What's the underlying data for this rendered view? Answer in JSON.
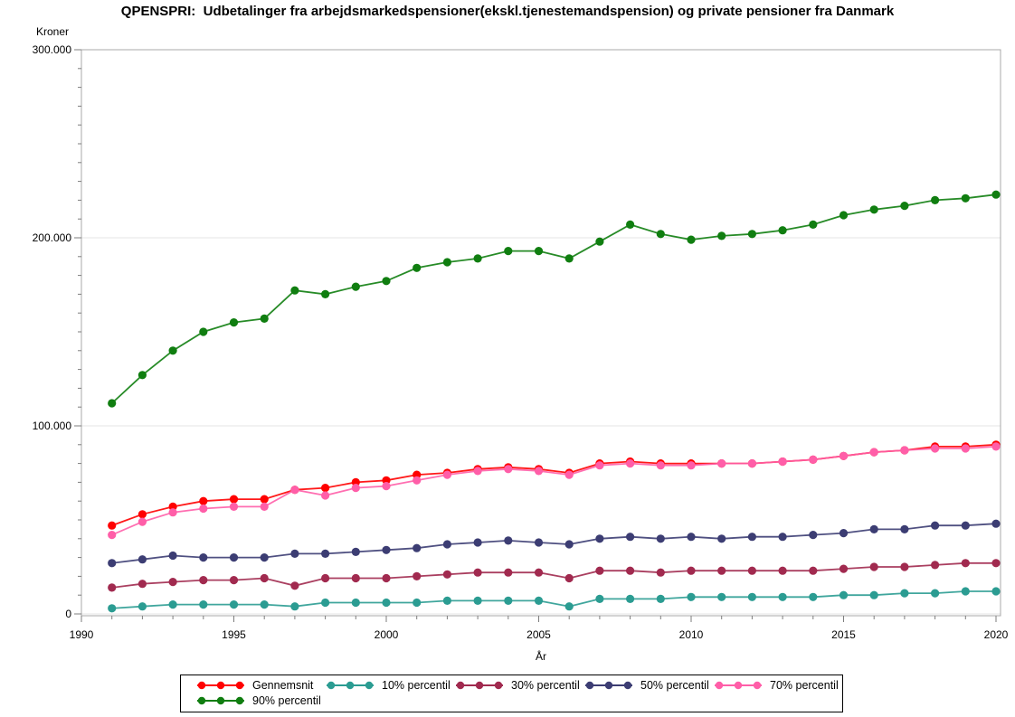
{
  "chart_data": {
    "type": "line",
    "title": "QPENSPRI:  Udbetalinger fra arbejdsmarkedspensioner(ekskl.tjenestemandspension) og private pensioner fra Danmark",
    "xlabel": "År",
    "ylabel": "Kroner",
    "xlim": [
      1990,
      2020
    ],
    "ylim": [
      0,
      300000
    ],
    "grid": "horizontal-major",
    "legend_position": "bottom",
    "x_ticks": [
      1990,
      1995,
      2000,
      2005,
      2010,
      2015,
      2020
    ],
    "x_minor_step": 1,
    "y_ticks": [
      {
        "value": 0,
        "label": "0"
      },
      {
        "value": 100000,
        "label": "100.000"
      },
      {
        "value": 200000,
        "label": "200.000"
      },
      {
        "value": 300000,
        "label": "300.000"
      }
    ],
    "y_minor_step": 10000,
    "x": [
      1991,
      1992,
      1993,
      1994,
      1995,
      1996,
      1997,
      1998,
      1999,
      2000,
      2001,
      2002,
      2003,
      2004,
      2005,
      2006,
      2007,
      2008,
      2009,
      2010,
      2011,
      2012,
      2013,
      2014,
      2015,
      2016,
      2017,
      2018,
      2019,
      2020
    ],
    "series": [
      {
        "name": "Gennemsnit",
        "color": "#FF0000",
        "values": [
          47000,
          53000,
          57000,
          60000,
          61000,
          61000,
          66000,
          67000,
          70000,
          71000,
          74000,
          75000,
          77000,
          78000,
          77000,
          75000,
          80000,
          81000,
          80000,
          80000,
          80000,
          80000,
          81000,
          82000,
          84000,
          86000,
          87000,
          89000,
          89000,
          90000
        ]
      },
      {
        "name": "10% percentil",
        "color": "#2B9C92",
        "values": [
          3000,
          4000,
          5000,
          5000,
          5000,
          5000,
          4000,
          6000,
          6000,
          6000,
          6000,
          7000,
          7000,
          7000,
          7000,
          4000,
          8000,
          8000,
          8000,
          9000,
          9000,
          9000,
          9000,
          9000,
          10000,
          10000,
          11000,
          11000,
          12000,
          12000
        ]
      },
      {
        "name": "30% percentil",
        "color": "#A12A4F",
        "values": [
          14000,
          16000,
          17000,
          18000,
          18000,
          19000,
          15000,
          19000,
          19000,
          19000,
          20000,
          21000,
          22000,
          22000,
          22000,
          19000,
          23000,
          23000,
          22000,
          23000,
          23000,
          23000,
          23000,
          23000,
          24000,
          25000,
          25000,
          26000,
          27000,
          27000
        ]
      },
      {
        "name": "50% percentil",
        "color": "#3C3D73",
        "values": [
          27000,
          29000,
          31000,
          30000,
          30000,
          30000,
          32000,
          32000,
          33000,
          34000,
          35000,
          37000,
          38000,
          39000,
          38000,
          37000,
          40000,
          41000,
          40000,
          41000,
          40000,
          41000,
          41000,
          42000,
          43000,
          45000,
          45000,
          47000,
          47000,
          48000
        ]
      },
      {
        "name": "70% percentil",
        "color": "#FF5EA8",
        "values": [
          42000,
          49000,
          54000,
          56000,
          57000,
          57000,
          66000,
          63000,
          67000,
          68000,
          71000,
          74000,
          76000,
          77000,
          76000,
          74000,
          79000,
          80000,
          79000,
          79000,
          80000,
          80000,
          81000,
          82000,
          84000,
          86000,
          87000,
          88000,
          88000,
          89000
        ]
      },
      {
        "name": "90% percentil",
        "color": "#107E10",
        "values": [
          112000,
          127000,
          140000,
          150000,
          155000,
          157000,
          172000,
          170000,
          174000,
          177000,
          184000,
          187000,
          189000,
          193000,
          193000,
          189000,
          198000,
          207000,
          202000,
          199000,
          201000,
          202000,
          204000,
          207000,
          212000,
          215000,
          217000,
          220000,
          221000,
          223000
        ]
      }
    ]
  }
}
